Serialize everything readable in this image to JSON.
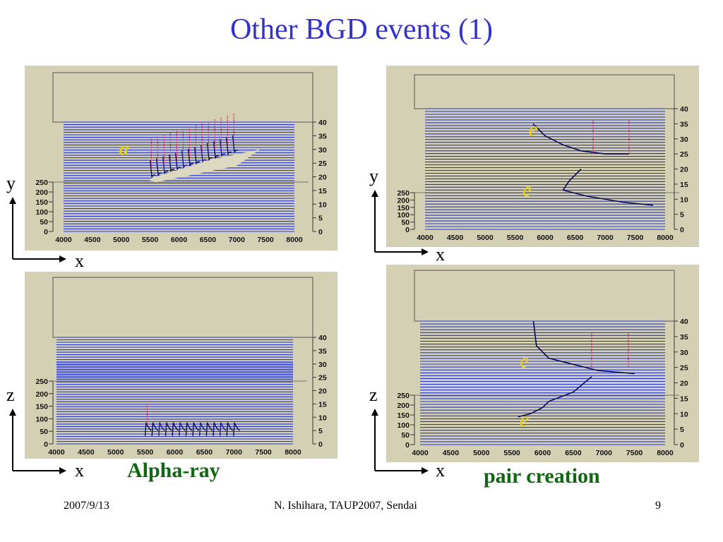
{
  "slide": {
    "title": "Other BGD events (1)",
    "footer_date": "2007/9/13",
    "footer_center": "N. Ishihara, TAUP2007, Sendai",
    "page_number": "9"
  },
  "colors": {
    "title": "#3333cc",
    "caption": "#116611",
    "panel_bg": "#d4d0b4",
    "wire": "#2233dd",
    "annotation": "#e6d300"
  },
  "captions": {
    "alpha": "Alpha-ray",
    "pair": "pair creation"
  },
  "chart_data": [
    {
      "type": "heatmap",
      "panel": "top-left",
      "view": "x-y",
      "x_ticks": [
        "4000",
        "4500",
        "5000",
        "5500",
        "6000",
        "6500",
        "7000",
        "7500",
        "8000"
      ],
      "left_ticks": [
        "0",
        "50",
        "100",
        "150",
        "200",
        "250"
      ],
      "right_ticks": [
        "0",
        "5",
        "10",
        "15",
        "20",
        "25",
        "30",
        "35",
        "40"
      ],
      "axis_x_label": "x",
      "axis_y_label": "y",
      "annotations": [
        "α"
      ]
    },
    {
      "type": "heatmap",
      "panel": "top-right",
      "view": "x-y",
      "x_ticks": [
        "4000",
        "4500",
        "5000",
        "5500",
        "6000",
        "6500",
        "7000",
        "7500",
        "8000"
      ],
      "left_ticks": [
        "0",
        "50",
        "100",
        "150",
        "200",
        "250"
      ],
      "right_ticks": [
        "0",
        "5",
        "10",
        "15",
        "20",
        "25",
        "30",
        "35",
        "40"
      ],
      "axis_x_label": "x",
      "axis_y_label": "y",
      "annotations": [
        "e",
        "e"
      ]
    },
    {
      "type": "heatmap",
      "panel": "bottom-left",
      "view": "x-z",
      "x_ticks": [
        "4000",
        "4500",
        "5000",
        "5500",
        "6000",
        "6500",
        "7000",
        "7500",
        "8000"
      ],
      "left_ticks": [
        "0",
        "50",
        "100",
        "150",
        "200",
        "250"
      ],
      "right_ticks": [
        "0",
        "5",
        "10",
        "15",
        "20",
        "25",
        "30",
        "35",
        "40"
      ],
      "axis_x_label": "x",
      "axis_y_label": "z",
      "annotations": []
    },
    {
      "type": "heatmap",
      "panel": "bottom-right",
      "view": "x-z",
      "x_ticks": [
        "4000",
        "4500",
        "5000",
        "5500",
        "6000",
        "6500",
        "7000",
        "7500",
        "8000"
      ],
      "left_ticks": [
        "0",
        "50",
        "100",
        "150",
        "200",
        "250"
      ],
      "right_ticks": [
        "0",
        "5",
        "10",
        "15",
        "20",
        "25",
        "30",
        "35",
        "40"
      ],
      "axis_x_label": "x",
      "axis_y_label": "z",
      "annotations": [
        "e",
        "e"
      ]
    }
  ]
}
